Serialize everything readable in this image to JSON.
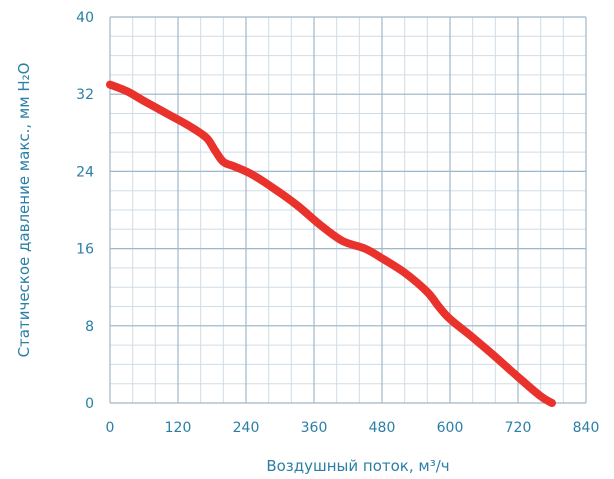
{
  "chart_data": {
    "type": "line",
    "title": "",
    "xlabel": "Воздушный поток, м³/ч",
    "ylabel": "Статическое давление макс., мм H₂O",
    "xlim": [
      0,
      840
    ],
    "ylim": [
      0,
      40
    ],
    "x_ticks": [
      0,
      120,
      240,
      360,
      480,
      600,
      720,
      840
    ],
    "y_ticks": [
      0,
      8,
      16,
      24,
      32,
      40
    ],
    "x_minor_step": 40,
    "y_minor_step": 2,
    "grid": true,
    "colors": {
      "line": "#e8322b",
      "major_grid": "#9fb8c8",
      "minor_grid": "#cfdde7",
      "text": "#2a7fa6"
    },
    "series": [
      {
        "x": [
          0,
          30,
          60,
          100,
          140,
          170,
          185,
          200,
          220,
          250,
          290,
          330,
          370,
          410,
          450,
          480,
          520,
          560,
          580,
          600,
          640,
          680,
          720,
          760,
          780
        ],
        "y": [
          33.0,
          32.3,
          31.3,
          30.0,
          28.7,
          27.5,
          26.2,
          25.0,
          24.5,
          23.7,
          22.2,
          20.5,
          18.5,
          16.8,
          16.0,
          15.0,
          13.5,
          11.5,
          10.0,
          8.7,
          6.8,
          4.8,
          2.7,
          0.7,
          0.0
        ]
      }
    ]
  }
}
